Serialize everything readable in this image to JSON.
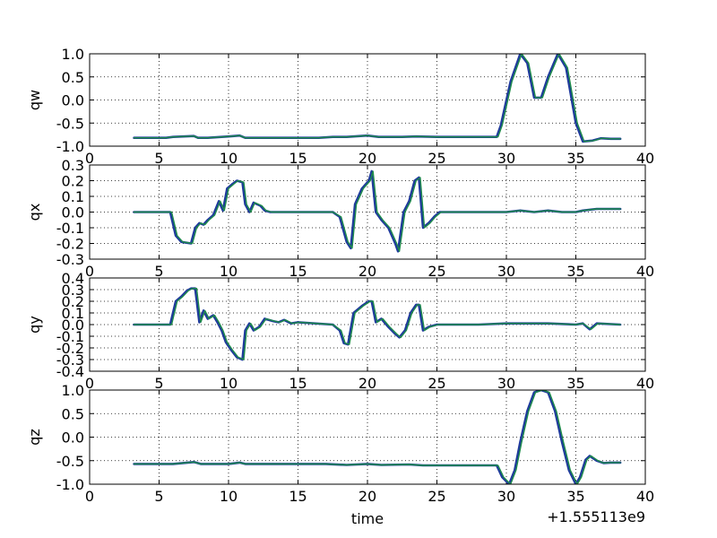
{
  "chart_data": [
    {
      "type": "line",
      "ylabel": "qw",
      "xlim": [
        0,
        40
      ],
      "ylim": [
        -1.0,
        1.0
      ],
      "xticks": [
        "0",
        "5",
        "10",
        "15",
        "20",
        "25",
        "30",
        "35",
        "40"
      ],
      "yticks": [
        "-1.0",
        "-0.5",
        "0.0",
        "0.5",
        "1.0"
      ],
      "grid": true,
      "series": [
        {
          "color": "#1f3a9c",
          "x": [
            3.2,
            5.5,
            6.0,
            7.5,
            7.8,
            8.5,
            10.0,
            10.8,
            11.2,
            15.0,
            16.5,
            17.5,
            18.5,
            20.0,
            20.8,
            22.5,
            23.5,
            25.0,
            29.3,
            29.6,
            30.3,
            31.0,
            31.5,
            32.0,
            32.5,
            33.0,
            33.7,
            34.3,
            35.0,
            35.5,
            36.2,
            36.8,
            37.5,
            38.2
          ],
          "y": [
            -0.82,
            -0.82,
            -0.8,
            -0.78,
            -0.82,
            -0.82,
            -0.79,
            -0.77,
            -0.82,
            -0.82,
            -0.82,
            -0.8,
            -0.8,
            -0.77,
            -0.8,
            -0.8,
            -0.79,
            -0.8,
            -0.8,
            -0.55,
            0.4,
            1.0,
            0.8,
            0.05,
            0.05,
            0.5,
            1.0,
            0.7,
            -0.5,
            -0.9,
            -0.88,
            -0.83,
            -0.84,
            -0.84
          ]
        },
        {
          "color": "#1e8c4a",
          "x": [
            3.2,
            5.5,
            6.0,
            7.5,
            7.8,
            8.5,
            10.0,
            10.8,
            11.2,
            15.0,
            16.5,
            17.5,
            18.5,
            20.0,
            20.8,
            22.5,
            23.5,
            25.0,
            29.4,
            29.7,
            30.4,
            31.1,
            31.6,
            32.1,
            32.6,
            33.1,
            33.8,
            34.4,
            35.1,
            35.6,
            36.3,
            36.9,
            37.5,
            38.2
          ],
          "y": [
            -0.82,
            -0.82,
            -0.8,
            -0.78,
            -0.82,
            -0.82,
            -0.79,
            -0.77,
            -0.82,
            -0.82,
            -0.82,
            -0.8,
            -0.8,
            -0.77,
            -0.8,
            -0.8,
            -0.79,
            -0.8,
            -0.8,
            -0.55,
            0.4,
            1.0,
            0.8,
            0.05,
            0.05,
            0.5,
            1.0,
            0.7,
            -0.5,
            -0.9,
            -0.88,
            -0.83,
            -0.84,
            -0.84
          ]
        }
      ]
    },
    {
      "type": "line",
      "ylabel": "qx",
      "xlim": [
        0,
        40
      ],
      "ylim": [
        -0.3,
        0.3
      ],
      "xticks": [
        "0",
        "5",
        "10",
        "15",
        "20",
        "25",
        "30",
        "35",
        "40"
      ],
      "yticks": [
        "-0.3",
        "-0.2",
        "-0.1",
        "0.0",
        "0.1",
        "0.2",
        "0.3"
      ],
      "grid": true,
      "series": [
        {
          "color": "#1f3a9c",
          "x": [
            3.2,
            5.8,
            6.2,
            6.6,
            7.3,
            7.6,
            7.9,
            8.2,
            8.5,
            8.9,
            9.3,
            9.6,
            9.9,
            10.3,
            10.6,
            11.0,
            11.2,
            11.5,
            11.8,
            12.3,
            12.6,
            13.0,
            16.5,
            17.5,
            18.0,
            18.5,
            18.8,
            19.1,
            19.6,
            20.1,
            20.3,
            20.6,
            21.0,
            21.5,
            22.0,
            22.2,
            22.6,
            23.0,
            23.4,
            23.7,
            24.0,
            24.4,
            24.8,
            25.2,
            28.0,
            30.0,
            31.0,
            32.0,
            33.0,
            34.0,
            35.0,
            35.5,
            36.5,
            38.2
          ],
          "y": [
            0.0,
            0.0,
            -0.15,
            -0.19,
            -0.2,
            -0.1,
            -0.07,
            -0.08,
            -0.05,
            -0.02,
            0.07,
            0.01,
            0.15,
            0.18,
            0.2,
            0.19,
            0.05,
            0.0,
            0.06,
            0.04,
            0.01,
            0.0,
            0.0,
            0.0,
            -0.03,
            -0.19,
            -0.23,
            0.05,
            0.15,
            0.2,
            0.26,
            0.0,
            -0.05,
            -0.1,
            -0.2,
            -0.25,
            0.0,
            0.07,
            0.2,
            0.22,
            -0.1,
            -0.07,
            -0.03,
            0.0,
            0.0,
            0.0,
            0.01,
            0.0,
            0.01,
            0.0,
            0.0,
            0.01,
            0.02,
            0.02
          ]
        },
        {
          "color": "#1e8c4a",
          "x": [
            3.2,
            5.9,
            6.3,
            6.7,
            7.4,
            7.7,
            8.0,
            8.3,
            8.6,
            9.0,
            9.4,
            9.7,
            10.0,
            10.4,
            10.7,
            11.1,
            11.3,
            11.6,
            11.9,
            12.4,
            12.7,
            13.1,
            16.5,
            17.5,
            18.1,
            18.6,
            18.9,
            19.2,
            19.7,
            20.2,
            20.4,
            20.7,
            21.1,
            21.6,
            22.1,
            22.3,
            22.7,
            23.1,
            23.5,
            23.8,
            24.1,
            24.5,
            24.9,
            25.3,
            28.0,
            30.0,
            31.0,
            32.0,
            33.0,
            34.0,
            35.0,
            35.5,
            36.5,
            38.2
          ],
          "y": [
            0.0,
            0.0,
            -0.15,
            -0.19,
            -0.2,
            -0.1,
            -0.07,
            -0.08,
            -0.05,
            -0.02,
            0.07,
            0.01,
            0.15,
            0.18,
            0.2,
            0.19,
            0.05,
            0.0,
            0.06,
            0.04,
            0.01,
            0.0,
            0.0,
            0.0,
            -0.03,
            -0.19,
            -0.23,
            0.05,
            0.15,
            0.2,
            0.26,
            0.0,
            -0.05,
            -0.1,
            -0.2,
            -0.25,
            0.0,
            0.07,
            0.2,
            0.22,
            -0.1,
            -0.07,
            -0.03,
            0.0,
            0.0,
            0.0,
            0.01,
            0.0,
            0.01,
            0.0,
            0.0,
            0.01,
            0.02,
            0.02
          ]
        }
      ]
    },
    {
      "type": "line",
      "ylabel": "qy",
      "xlim": [
        0,
        40
      ],
      "ylim": [
        -0.4,
        0.4
      ],
      "xticks": [
        "0",
        "5",
        "10",
        "15",
        "20",
        "25",
        "30",
        "35",
        "40"
      ],
      "yticks": [
        "-0.4",
        "-0.3",
        "-0.2",
        "-0.1",
        "0.0",
        "0.1",
        "0.2",
        "0.3",
        "0.4"
      ],
      "grid": true,
      "series": [
        {
          "color": "#1f3a9c",
          "x": [
            3.2,
            5.8,
            6.2,
            6.6,
            7.0,
            7.3,
            7.6,
            7.9,
            8.2,
            8.5,
            8.9,
            9.2,
            9.5,
            9.8,
            10.2,
            10.6,
            11.0,
            11.2,
            11.5,
            11.8,
            12.2,
            12.6,
            13.2,
            13.6,
            14.0,
            14.5,
            15.0,
            17.5,
            18.0,
            18.3,
            18.6,
            19.0,
            19.6,
            20.1,
            20.3,
            20.6,
            21.0,
            21.5,
            22.0,
            22.3,
            22.7,
            23.1,
            23.5,
            23.7,
            24.0,
            24.4,
            25.0,
            28.0,
            30.0,
            33.0,
            35.0,
            35.5,
            36.0,
            36.5,
            38.2
          ],
          "y": [
            0.0,
            0.0,
            0.2,
            0.24,
            0.29,
            0.31,
            0.31,
            0.02,
            0.12,
            0.05,
            0.08,
            0.02,
            -0.05,
            -0.15,
            -0.22,
            -0.28,
            -0.3,
            -0.05,
            0.01,
            -0.05,
            -0.02,
            0.05,
            0.03,
            0.02,
            0.04,
            0.01,
            0.02,
            0.0,
            -0.05,
            -0.16,
            -0.17,
            0.1,
            0.16,
            0.2,
            0.2,
            0.02,
            0.05,
            -0.02,
            -0.08,
            -0.11,
            -0.05,
            0.1,
            0.17,
            0.17,
            -0.05,
            -0.02,
            0.0,
            0.0,
            0.01,
            0.01,
            0.0,
            0.01,
            -0.04,
            0.01,
            0.0
          ]
        },
        {
          "color": "#1e8c4a",
          "x": [
            3.2,
            5.9,
            6.3,
            6.7,
            7.1,
            7.4,
            7.7,
            8.0,
            8.3,
            8.6,
            9.0,
            9.3,
            9.6,
            9.9,
            10.3,
            10.7,
            11.1,
            11.3,
            11.6,
            11.9,
            12.3,
            12.7,
            13.3,
            13.7,
            14.1,
            14.6,
            15.1,
            17.5,
            18.1,
            18.4,
            18.7,
            19.1,
            19.7,
            20.2,
            20.4,
            20.7,
            21.1,
            21.6,
            22.1,
            22.4,
            22.8,
            23.2,
            23.6,
            23.8,
            24.1,
            24.5,
            25.1,
            28.0,
            30.0,
            33.0,
            35.0,
            35.5,
            36.1,
            36.6,
            38.2
          ],
          "y": [
            0.0,
            0.0,
            0.2,
            0.24,
            0.29,
            0.31,
            0.31,
            0.02,
            0.12,
            0.05,
            0.08,
            0.02,
            -0.05,
            -0.15,
            -0.22,
            -0.28,
            -0.3,
            -0.05,
            0.01,
            -0.05,
            -0.02,
            0.05,
            0.03,
            0.02,
            0.04,
            0.01,
            0.02,
            0.0,
            -0.05,
            -0.16,
            -0.17,
            0.1,
            0.16,
            0.2,
            0.2,
            0.02,
            0.05,
            -0.02,
            -0.08,
            -0.11,
            -0.05,
            0.1,
            0.17,
            0.17,
            -0.05,
            -0.02,
            0.0,
            0.0,
            0.01,
            0.01,
            0.0,
            0.01,
            -0.04,
            0.01,
            0.0
          ]
        }
      ]
    },
    {
      "type": "line",
      "ylabel": "qz",
      "xlabel": "time",
      "offset_text": "+1.555113e9",
      "xlim": [
        0,
        40
      ],
      "ylim": [
        -1.0,
        1.0
      ],
      "xticks": [
        "0",
        "5",
        "10",
        "15",
        "20",
        "25",
        "30",
        "35",
        "40"
      ],
      "yticks": [
        "-1.0",
        "-0.5",
        "0.0",
        "0.5",
        "1.0"
      ],
      "grid": true,
      "series": [
        {
          "color": "#1f3a9c",
          "x": [
            3.2,
            6.0,
            7.5,
            8.0,
            10.0,
            10.8,
            11.2,
            17.0,
            18.5,
            20.0,
            21.0,
            23.0,
            24.0,
            29.3,
            29.7,
            30.2,
            30.6,
            31.0,
            31.5,
            32.0,
            32.5,
            33.0,
            33.5,
            34.0,
            34.5,
            35.0,
            35.3,
            35.7,
            36.0,
            36.5,
            37.0,
            37.5,
            38.2
          ],
          "y": [
            -0.57,
            -0.57,
            -0.53,
            -0.57,
            -0.57,
            -0.54,
            -0.57,
            -0.57,
            -0.59,
            -0.57,
            -0.59,
            -0.58,
            -0.6,
            -0.6,
            -0.85,
            -1.0,
            -0.7,
            -0.1,
            0.55,
            0.95,
            1.0,
            0.95,
            0.55,
            -0.1,
            -0.7,
            -1.0,
            -0.85,
            -0.48,
            -0.4,
            -0.5,
            -0.55,
            -0.54,
            -0.54
          ]
        },
        {
          "color": "#1e8c4a",
          "x": [
            3.2,
            6.0,
            7.5,
            8.0,
            10.0,
            10.8,
            11.2,
            17.0,
            18.5,
            20.0,
            21.0,
            23.0,
            24.0,
            29.4,
            29.8,
            30.3,
            30.7,
            31.1,
            31.6,
            32.1,
            32.6,
            33.1,
            33.6,
            34.1,
            34.6,
            35.1,
            35.4,
            35.8,
            36.1,
            36.6,
            37.0,
            37.5,
            38.2
          ],
          "y": [
            -0.57,
            -0.57,
            -0.53,
            -0.57,
            -0.57,
            -0.54,
            -0.57,
            -0.57,
            -0.59,
            -0.57,
            -0.59,
            -0.58,
            -0.6,
            -0.6,
            -0.85,
            -1.0,
            -0.7,
            -0.1,
            0.55,
            0.95,
            1.0,
            0.95,
            0.55,
            -0.1,
            -0.7,
            -1.0,
            -0.85,
            -0.48,
            -0.4,
            -0.5,
            -0.55,
            -0.54,
            -0.54
          ]
        }
      ]
    }
  ]
}
